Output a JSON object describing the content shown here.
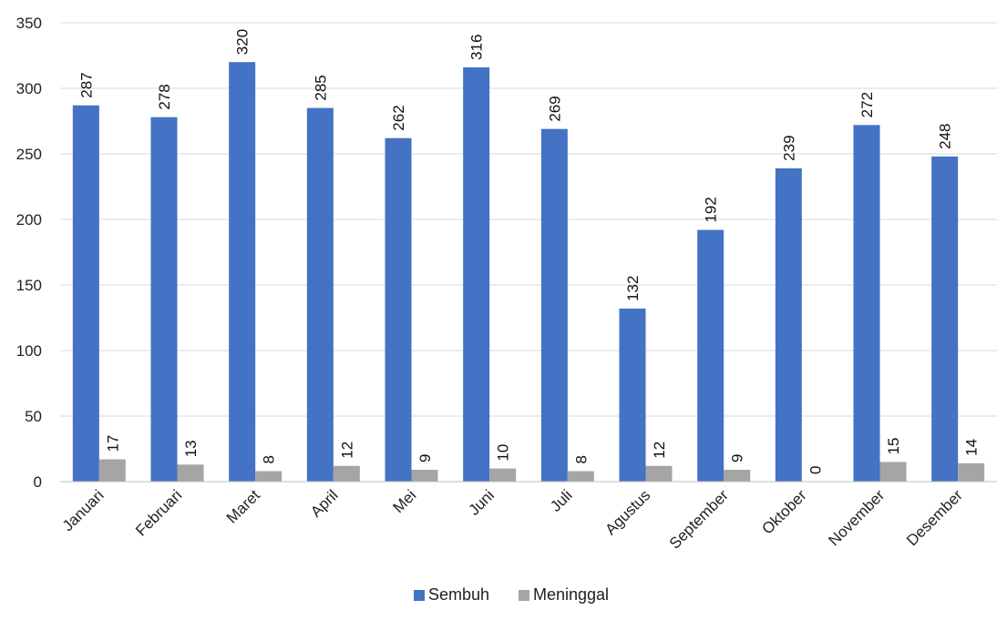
{
  "chart_data": {
    "type": "bar",
    "categories": [
      "Januari",
      "Februari",
      "Maret",
      "April",
      "Mei",
      "Juni",
      "Juli",
      "Agustus",
      "September",
      "Oktober",
      "November",
      "Desember"
    ],
    "series": [
      {
        "name": "Sembuh",
        "color": "#4472C4",
        "values": [
          287,
          278,
          320,
          285,
          262,
          316,
          269,
          132,
          192,
          239,
          272,
          248
        ]
      },
      {
        "name": "Meninggal",
        "color": "#A5A5A5",
        "values": [
          17,
          13,
          8,
          12,
          9,
          10,
          8,
          12,
          9,
          0,
          15,
          14
        ]
      }
    ],
    "ylim": [
      0,
      350
    ],
    "yticks": [
      0,
      50,
      100,
      150,
      200,
      250,
      300,
      350
    ],
    "grid": true,
    "legend_position": "bottom",
    "data_labels": true
  }
}
